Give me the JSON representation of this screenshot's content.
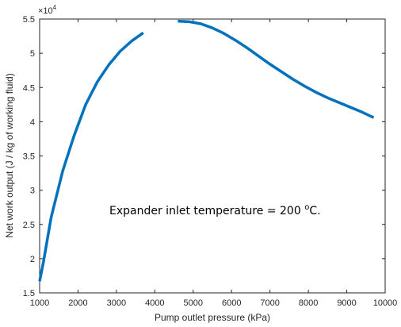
{
  "chart_data": {
    "type": "line",
    "title": "",
    "xlabel": "Pump outlet pressure (kPa)",
    "ylabel": "Net work output (J / kg of working fluid)",
    "xlim": [
      1000,
      10000
    ],
    "ylim": [
      15000,
      55000
    ],
    "x_ticks": [
      1000,
      2000,
      3000,
      4000,
      5000,
      6000,
      7000,
      8000,
      9000,
      10000
    ],
    "y_ticks": [
      15000,
      20000,
      25000,
      30000,
      35000,
      40000,
      45000,
      50000,
      55000
    ],
    "y_tick_labels": [
      "1.5",
      "2",
      "2.5",
      "3",
      "3.5",
      "4",
      "4.5",
      "5",
      "5.5"
    ],
    "x_tick_labels": [
      "1000",
      "2000",
      "3000",
      "4000",
      "5000",
      "6000",
      "7000",
      "8000",
      "9000",
      "10000"
    ],
    "y_exponent_base": "×10",
    "y_exponent_power": "4",
    "grid": false,
    "line_color": "#0072BD",
    "annotation": {
      "text_main": "Expander inlet temperature = 200 ",
      "text_sup": "o",
      "text_tail": "C."
    },
    "segments": [
      {
        "x": [
          1000,
          1100,
          1300,
          1600,
          1900,
          2200,
          2500,
          2800,
          3100,
          3400,
          3700
        ],
        "y": [
          16700,
          19500,
          26000,
          32800,
          38000,
          42500,
          45800,
          48300,
          50300,
          51800,
          53000
        ]
      },
      {
        "x": [
          4600,
          4900,
          5200,
          5500,
          5800,
          6100,
          6400,
          6700,
          7000,
          7300,
          7600,
          7900,
          8200,
          8500,
          8800,
          9100,
          9400,
          9700
        ],
        "y": [
          54700,
          54600,
          54300,
          53700,
          52900,
          51900,
          50800,
          49600,
          48400,
          47300,
          46200,
          45200,
          44300,
          43500,
          42800,
          42100,
          41400,
          40600
        ]
      }
    ]
  }
}
